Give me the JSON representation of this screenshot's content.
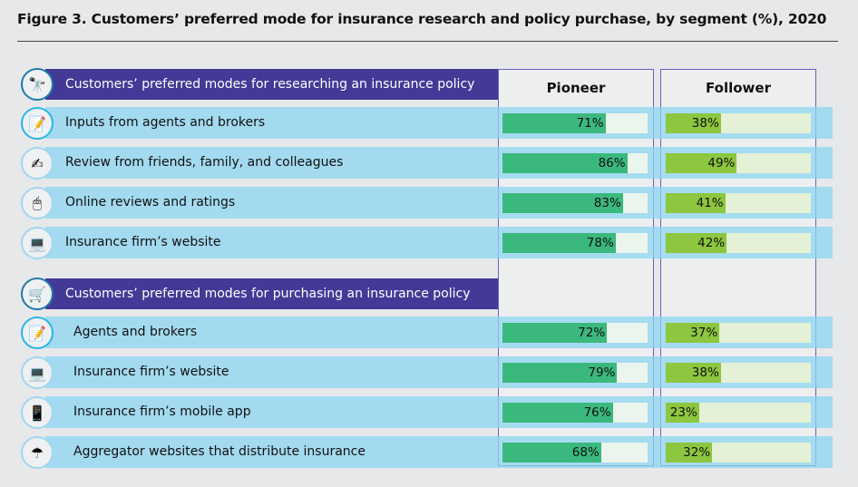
{
  "title": "Figure 3. Customers’ preferred mode for insurance research and policy purchase, by segment (%), 2020",
  "chart_data": {
    "type": "bar",
    "orientation": "horizontal",
    "title": "Figure 3. Customers’ preferred mode for insurance research and policy purchase, by segment (%), 2020",
    "xlim": [
      0,
      100
    ],
    "columns": [
      "Pioneer",
      "Follower"
    ],
    "colors": {
      "Pioneer": "#3bb87e",
      "Follower": "#8dc63f",
      "pioneer_track": "#eaf5ee",
      "follower_track": "#e4f1d6",
      "section_header": "#423a96",
      "row_band": "#8cd6f0"
    },
    "sections": [
      {
        "header": "Customers’ preferred modes for researching an insurance policy",
        "icon": "telescope-icon",
        "rows": [
          {
            "label": "Inputs from agents and brokers",
            "icon": "document-pen-icon",
            "pioneer": 71,
            "follower": 38
          },
          {
            "label": "Review from friends, family, and colleagues",
            "icon": "handshake-pen-icon",
            "pioneer": 86,
            "follower": 49
          },
          {
            "label": "Online reviews and ratings",
            "icon": "mouse-icon",
            "pioneer": 83,
            "follower": 41
          },
          {
            "label": "Insurance firm’s website",
            "icon": "laptop-icon",
            "pioneer": 78,
            "follower": 42
          }
        ]
      },
      {
        "header": "Customers’ preferred modes for purchasing an insurance policy",
        "icon": "shopping-cart-icon",
        "rows": [
          {
            "label": "Agents and brokers",
            "icon": "document-pen-icon",
            "pioneer": 72,
            "follower": 37
          },
          {
            "label": "Insurance firm’s website",
            "icon": "laptop-icon",
            "pioneer": 79,
            "follower": 38
          },
          {
            "label": "Insurance firm’s mobile app",
            "icon": "mobile-phone-icon",
            "pioneer": 76,
            "follower": 23
          },
          {
            "label": "Aggregator websites that distribute insurance",
            "icon": "umbrella-hand-icon",
            "pioneer": 68,
            "follower": 32
          }
        ]
      }
    ]
  }
}
